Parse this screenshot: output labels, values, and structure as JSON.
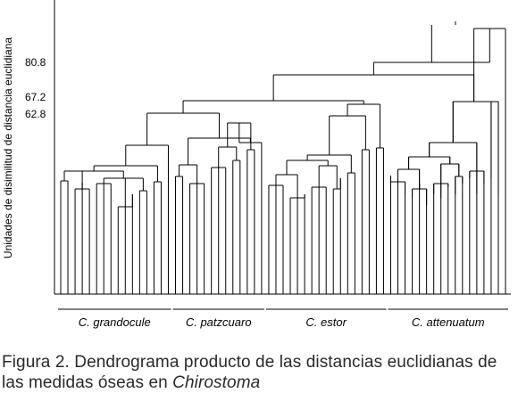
{
  "chart_data": {
    "type": "dendrogram",
    "ylabel": "Unidades de disimilitud de distancia euclidiana",
    "yticks": [
      80.8,
      67.2,
      62.8
    ],
    "ylim": [
      0,
      100
    ],
    "grid": false,
    "groups": [
      {
        "name": "C. grandocule",
        "leaves": 16
      },
      {
        "name": "C. patzcuaro",
        "leaves": 13
      },
      {
        "name": "C. estor",
        "leaves": 17
      },
      {
        "name": "C. attenuatum",
        "leaves": 17
      }
    ]
  },
  "caption": {
    "line1": "Figura 2. Dendrograma producto de las distancias euclidianas de",
    "line2_prefix": "las medidas óseas en ",
    "line2_italic": "Chirostoma"
  }
}
